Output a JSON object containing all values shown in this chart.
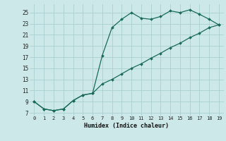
{
  "xlabel": "Humidex (Indice chaleur)",
  "background_color": "#cce8e8",
  "grid_color": "#aacfcf",
  "line_color": "#1a6b5a",
  "xlim": [
    -0.5,
    19.5
  ],
  "ylim": [
    6.5,
    26.5
  ],
  "xticks": [
    0,
    1,
    2,
    3,
    4,
    5,
    6,
    7,
    8,
    9,
    10,
    11,
    12,
    13,
    14,
    15,
    16,
    17,
    18,
    19
  ],
  "yticks": [
    7,
    9,
    11,
    13,
    15,
    17,
    19,
    21,
    23,
    25
  ],
  "upper_curve_x": [
    0,
    1,
    2,
    3,
    4,
    5,
    6,
    7,
    8,
    9,
    10,
    11,
    12,
    13,
    14,
    15,
    16,
    17,
    18,
    19
  ],
  "upper_curve_y": [
    9.0,
    7.7,
    7.4,
    7.7,
    9.2,
    10.2,
    10.5,
    17.3,
    22.3,
    23.8,
    25.0,
    24.0,
    23.8,
    24.3,
    25.3,
    25.0,
    25.5,
    24.7,
    23.8,
    22.8
  ],
  "lower_curve_x": [
    0,
    1,
    2,
    3,
    4,
    5,
    6,
    7,
    8,
    9,
    10,
    11,
    12,
    13,
    14,
    15,
    16,
    17,
    18,
    19
  ],
  "lower_curve_y": [
    9.0,
    7.7,
    7.4,
    7.7,
    9.2,
    10.2,
    10.5,
    12.2,
    13.0,
    14.0,
    15.0,
    15.8,
    16.8,
    17.7,
    18.7,
    19.5,
    20.5,
    21.3,
    22.3,
    22.8
  ]
}
